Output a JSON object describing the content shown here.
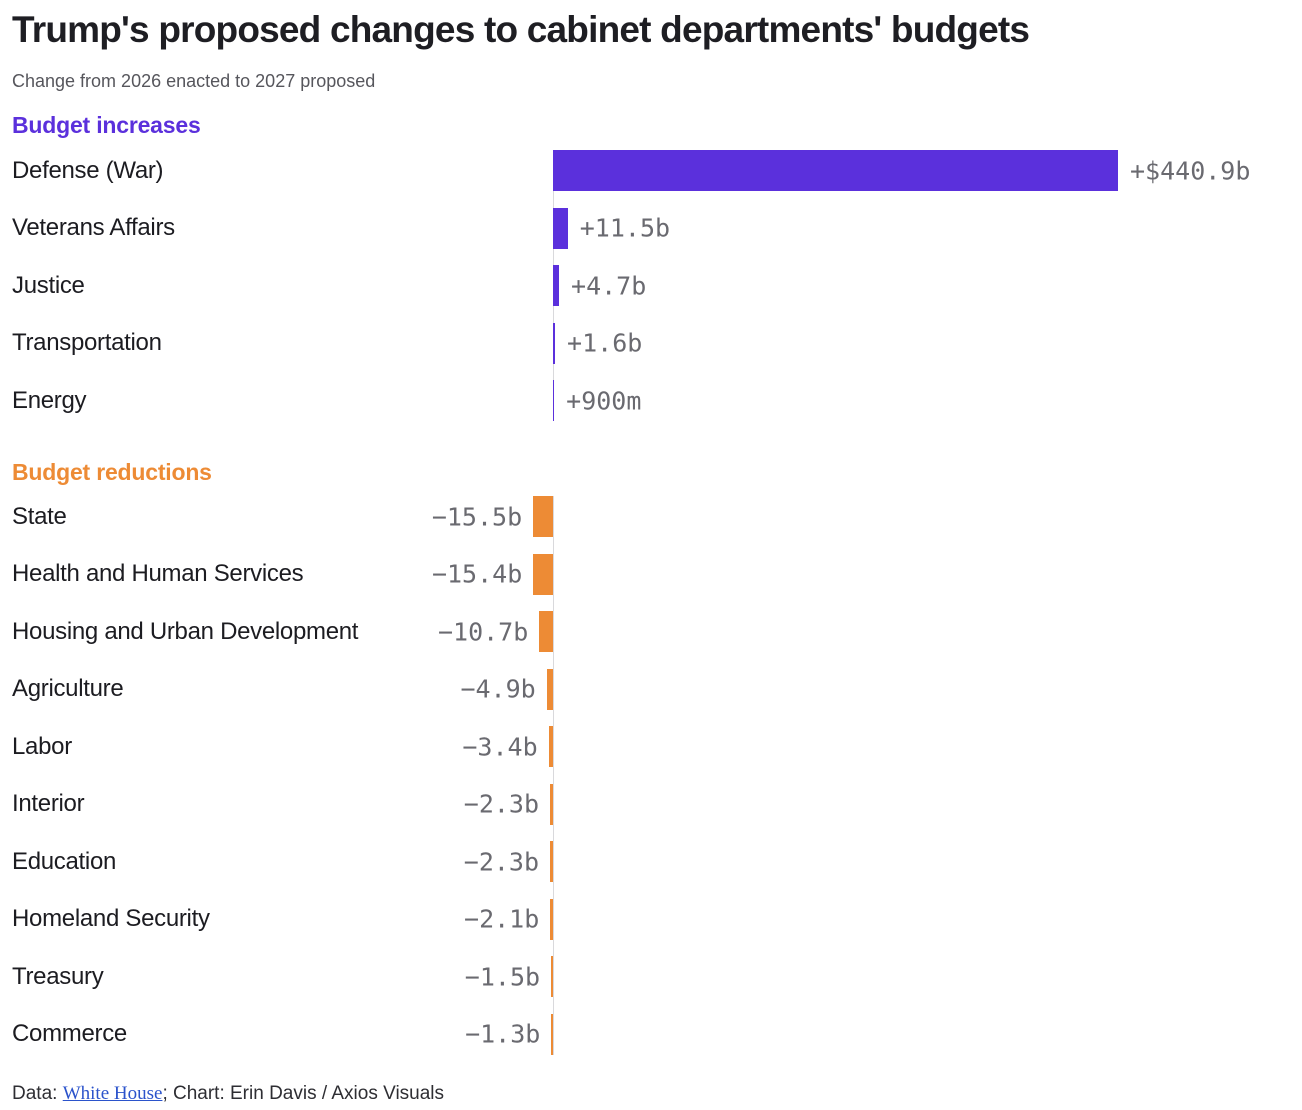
{
  "title": "Trump's proposed changes to cabinet departments' budgets",
  "subtitle": "Change from 2026 enacted to 2027 proposed",
  "footer": {
    "prefix": "Data: ",
    "link": "White House",
    "suffix": "; Chart: Erin Davis / Axios Visuals"
  },
  "colors": {
    "increase": "#5b30dc",
    "decrease": "#ed8b35",
    "value_label": "#6a6a70",
    "axis_line": "#d9d9dc",
    "title": "#1e1e23",
    "subtitle": "#56565c",
    "link": "#2b53cb"
  },
  "chart_data": {
    "type": "bar",
    "orientation": "horizontal",
    "unit": "billions of USD",
    "title": "Trump's proposed changes to cabinet departments' budgets",
    "subtitle": "Change from 2026 enacted to 2027 proposed",
    "grid": false,
    "legend": false,
    "xlim_b": [
      -16,
      441
    ],
    "sections": [
      {
        "label": "Budget increases",
        "color": "#5b30dc",
        "direction": "right",
        "items": [
          {
            "category": "Defense (War)",
            "value_b": 440.9,
            "value_label": "+$440.9b"
          },
          {
            "category": "Veterans Affairs",
            "value_b": 11.5,
            "value_label": "+11.5b"
          },
          {
            "category": "Justice",
            "value_b": 4.7,
            "value_label": "+4.7b"
          },
          {
            "category": "Transportation",
            "value_b": 1.6,
            "value_label": "+1.6b"
          },
          {
            "category": "Energy",
            "value_b": 0.9,
            "value_label": "+900m"
          }
        ]
      },
      {
        "label": "Budget reductions",
        "color": "#ed8b35",
        "direction": "left",
        "items": [
          {
            "category": "State",
            "value_b": 15.5,
            "value_label": "−15.5b"
          },
          {
            "category": "Health and Human Services",
            "value_b": 15.4,
            "value_label": "−15.4b"
          },
          {
            "category": "Housing and Urban Development",
            "value_b": 10.7,
            "value_label": "−10.7b"
          },
          {
            "category": "Agriculture",
            "value_b": 4.9,
            "value_label": "−4.9b"
          },
          {
            "category": "Labor",
            "value_b": 3.4,
            "value_label": "−3.4b"
          },
          {
            "category": "Interior",
            "value_b": 2.3,
            "value_label": "−2.3b"
          },
          {
            "category": "Education",
            "value_b": 2.3,
            "value_label": "−2.3b"
          },
          {
            "category": "Homeland Security",
            "value_b": 2.1,
            "value_label": "−2.1b"
          },
          {
            "category": "Treasury",
            "value_b": 1.5,
            "value_label": "−1.5b"
          },
          {
            "category": "Commerce",
            "value_b": 1.3,
            "value_label": "−1.3b"
          }
        ]
      }
    ]
  }
}
